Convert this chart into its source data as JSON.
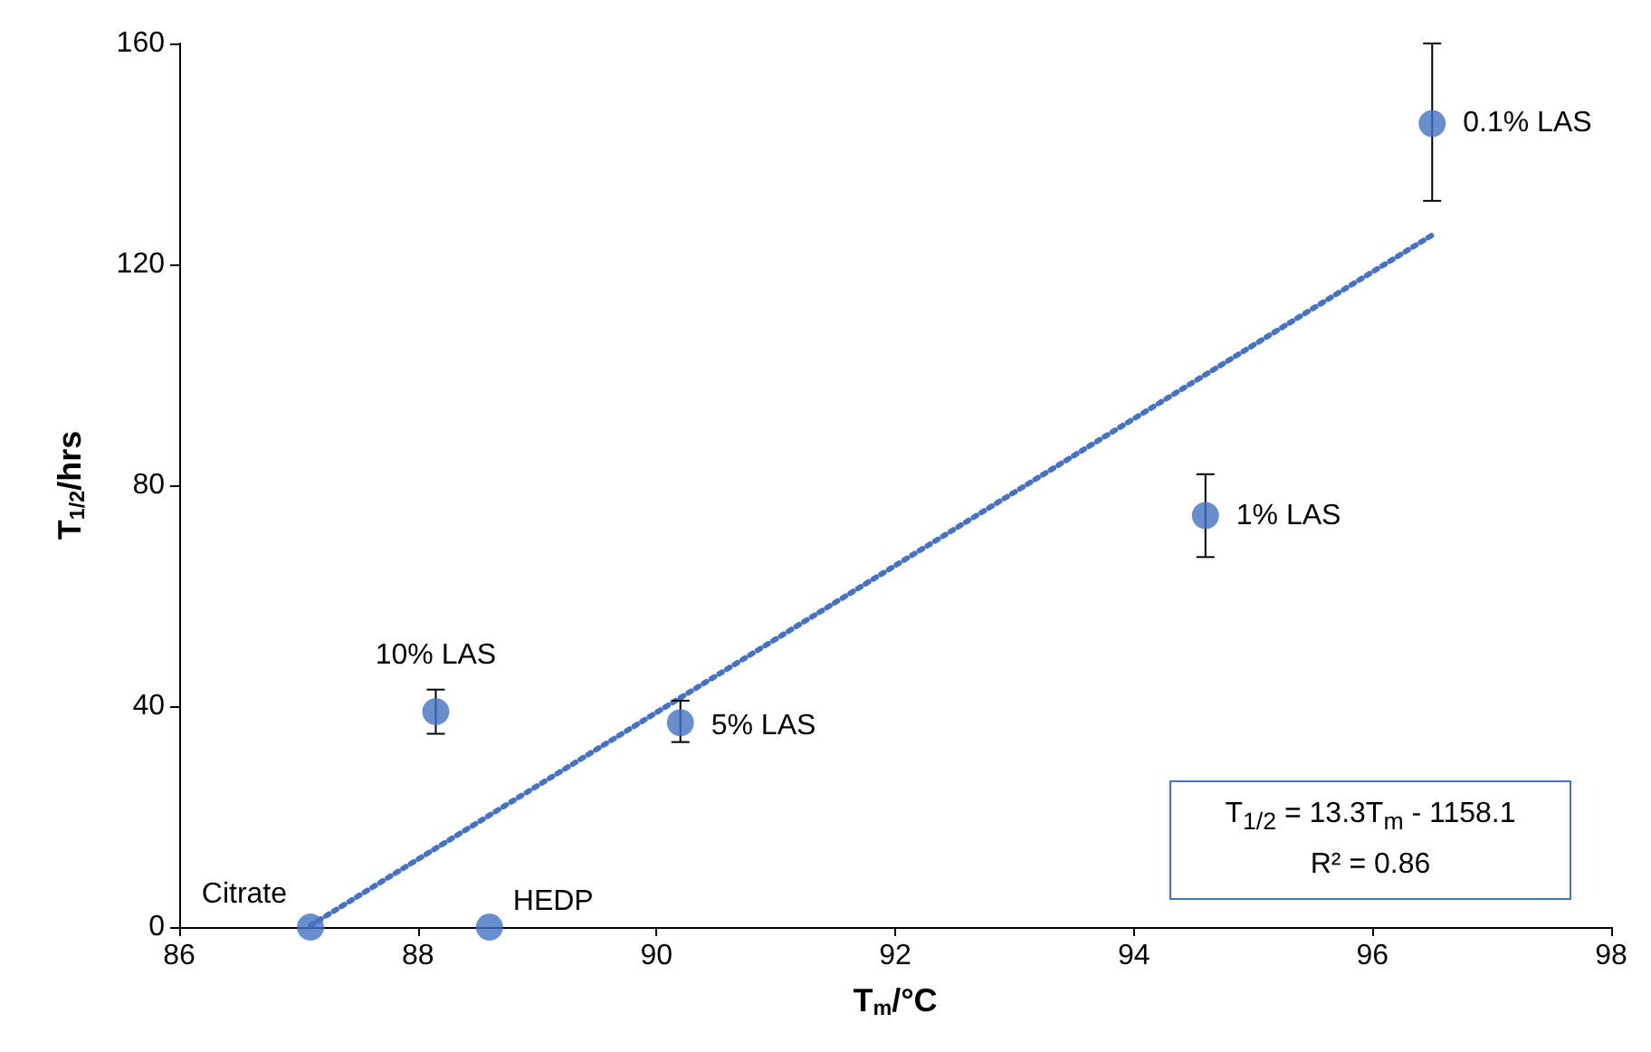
{
  "chart_data": {
    "type": "scatter",
    "xlabel": "T$_{m}$/°C",
    "ylabel": "T$_{1/2}$/hrs",
    "xlim": [
      86,
      98
    ],
    "xticks": [
      86,
      88,
      90,
      92,
      94,
      96,
      98
    ],
    "ylim": [
      0,
      160
    ],
    "yticks": [
      0,
      40,
      80,
      120,
      160
    ],
    "grid": false,
    "marker": "circle",
    "series": [
      {
        "color": "#4472c4",
        "x": [
          87.1,
          88.6,
          88.15,
          90.2,
          94.6,
          96.5
        ],
        "values": [
          0,
          0,
          39,
          37,
          74.5,
          145.5
        ],
        "errors": [
          null,
          null,
          [
            35,
            43
          ],
          [
            33.5,
            41
          ],
          [
            67,
            82
          ],
          [
            131.5,
            160
          ]
        ]
      },
      {
        "type": "line",
        "color": "#4472c4",
        "line_style": "dotted",
        "marker": "none",
        "x": [
          87.1,
          96.5
        ],
        "values": [
          0.3,
          125.3
        ]
      }
    ],
    "annotations": [
      {
        "text": "Citrate",
        "x": 87.1,
        "y": 0
      },
      {
        "text": "HEDP",
        "x": 88.6,
        "y": 0
      },
      {
        "text": "10% LAS",
        "x": 88.15,
        "y": 39
      },
      {
        "text": "5% LAS",
        "x": 90.2,
        "y": 37
      },
      {
        "text": "1% LAS",
        "x": 94.6,
        "y": 74.5
      },
      {
        "text": "0.1% LAS",
        "x": 96.5,
        "y": 145.5
      },
      "T$_{1/2}$ = 13.3T$_{m}$ - 1158.1",
      "R² = 0.86"
    ]
  }
}
